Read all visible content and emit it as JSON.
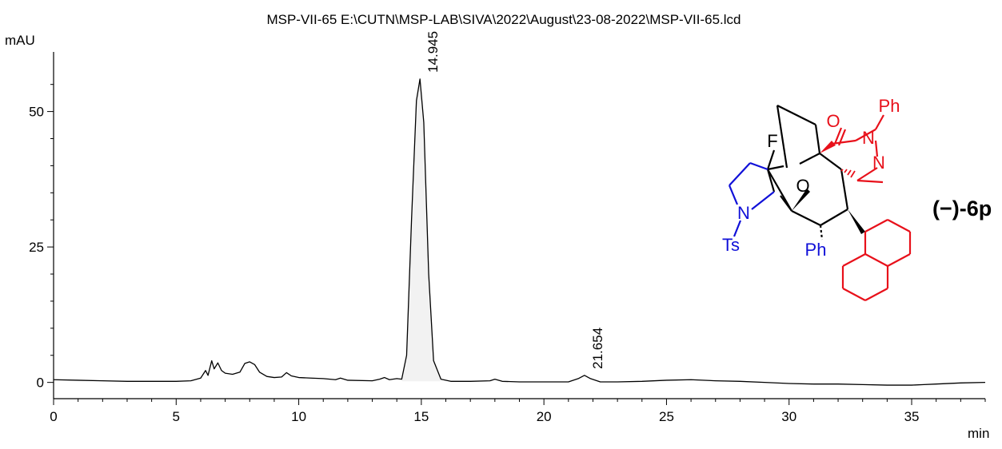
{
  "chart_data": {
    "type": "line",
    "title": "MSP-VII-65 E:\\CUTN\\MSP-LAB\\SIVA\\2022\\August\\23-08-2022\\MSP-VII-65.lcd",
    "ylabel": "mAU",
    "xlabel": "min",
    "xlim": [
      0,
      38
    ],
    "ylim": [
      -3,
      61
    ],
    "x_ticks": [
      0,
      5,
      10,
      15,
      20,
      25,
      30,
      35
    ],
    "y_ticks": [
      0,
      25,
      50
    ],
    "grid": false,
    "series": [
      {
        "x": [
          0,
          1,
          2,
          3,
          4,
          5,
          5.6,
          6.0,
          6.2,
          6.3,
          6.45,
          6.55,
          6.7,
          6.85,
          7.0,
          7.3,
          7.6,
          7.8,
          8.0,
          8.2,
          8.4,
          8.7,
          9.0,
          9.3,
          9.5,
          9.7,
          10.0,
          10.5,
          11.0,
          11.5,
          11.7,
          12.0,
          13.0,
          13.3,
          13.5,
          13.7,
          14.0,
          14.2,
          14.4,
          14.6,
          14.8,
          14.945,
          15.1,
          15.3,
          15.5,
          15.8,
          16.2,
          17.0,
          17.8,
          18.0,
          18.3,
          19.0,
          20.0,
          21.0,
          21.4,
          21.654,
          21.9,
          22.3,
          23.0,
          24.0,
          25.0,
          26.0,
          27.0,
          28.0,
          29.0,
          30.0,
          31.0,
          32.0,
          33.0,
          34.0,
          35.0,
          35.5,
          36.0,
          37.0,
          38.0
        ],
        "y": [
          0.5,
          0.4,
          0.3,
          0.2,
          0.2,
          0.2,
          0.3,
          0.8,
          2.2,
          1.3,
          4.0,
          2.5,
          3.6,
          2.2,
          1.7,
          1.5,
          1.9,
          3.5,
          3.8,
          3.3,
          1.9,
          1.1,
          0.9,
          1.0,
          1.8,
          1.2,
          0.9,
          0.8,
          0.7,
          0.5,
          0.8,
          0.4,
          0.3,
          0.6,
          0.9,
          0.5,
          0.7,
          0.6,
          5.0,
          30.0,
          52.0,
          56.0,
          48.0,
          20.0,
          4.0,
          0.6,
          0.2,
          0.2,
          0.3,
          0.6,
          0.2,
          0.1,
          0.1,
          0.1,
          0.7,
          1.3,
          0.7,
          0.1,
          0.1,
          0.2,
          0.4,
          0.5,
          0.3,
          0.2,
          0.0,
          -0.2,
          -0.3,
          -0.3,
          -0.4,
          -0.5,
          -0.5,
          -0.4,
          -0.3,
          -0.1,
          0.0
        ]
      }
    ],
    "peak_labels": [
      {
        "x": 14.945,
        "y": 56.0,
        "label": "14.945"
      },
      {
        "x": 21.654,
        "y": 1.3,
        "label": "21.654"
      }
    ]
  },
  "structure": {
    "compound_label": "(−)-6p",
    "atoms": {
      "o_top": "O",
      "ph_top": "Ph",
      "n_top": "N",
      "n_mid": "N",
      "f": "F",
      "o_bridge": "O",
      "n_pyrrolidine": "N",
      "ts": "Ts",
      "ph_bottom": "Ph"
    },
    "colors": {
      "pyrazolone": "#e8101a",
      "pyrrolidine": "#1010d8",
      "core": "#000000"
    }
  }
}
